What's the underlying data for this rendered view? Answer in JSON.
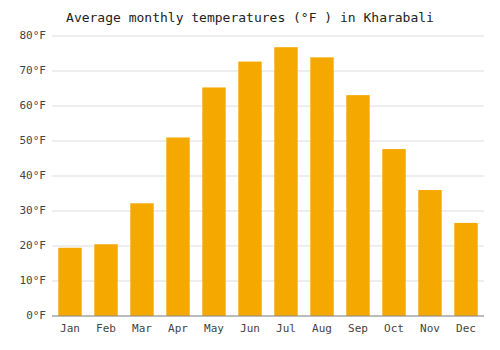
{
  "chart_data": {
    "type": "bar",
    "title": "Average monthly temperatures (°F ) in Kharabali",
    "categories": [
      "Jan",
      "Feb",
      "Mar",
      "Apr",
      "May",
      "Jun",
      "Jul",
      "Aug",
      "Sep",
      "Oct",
      "Nov",
      "Dec"
    ],
    "values": [
      19.5,
      20.5,
      32.2,
      51.0,
      65.3,
      72.7,
      76.8,
      73.9,
      63.1,
      47.7,
      36.0,
      26.6
    ],
    "color": "#F5A800",
    "ylim": [
      0,
      80
    ],
    "yticks": [
      {
        "value": 0,
        "label": "0°F"
      },
      {
        "value": 10,
        "label": "10°F"
      },
      {
        "value": 20,
        "label": "20°F"
      },
      {
        "value": 30,
        "label": "30°F"
      },
      {
        "value": 40,
        "label": "40°F"
      },
      {
        "value": 50,
        "label": "50°F"
      },
      {
        "value": 60,
        "label": "60°F"
      },
      {
        "value": 70,
        "label": "70°F"
      },
      {
        "value": 80,
        "label": "80°F"
      }
    ],
    "grid": true
  }
}
